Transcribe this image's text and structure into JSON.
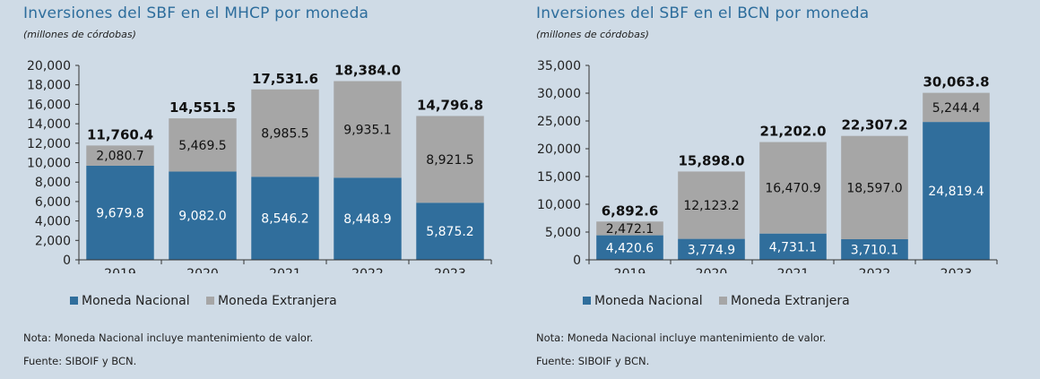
{
  "chart_data": [
    {
      "type": "bar",
      "stacked": true,
      "title": "Inversiones del SBF en el MHCP por moneda",
      "subtitle": "(millones de córdobas)",
      "categories": [
        "2019",
        "2020",
        "2021",
        "2022",
        "2023"
      ],
      "series": [
        {
          "name": "Moneda Nacional",
          "values": [
            9679.8,
            9082.0,
            8546.2,
            8448.9,
            5875.2
          ]
        },
        {
          "name": "Moneda Extranjera",
          "values": [
            2080.7,
            5469.5,
            8985.5,
            9935.1,
            8921.5
          ]
        }
      ],
      "totals": [
        11760.4,
        14551.5,
        17531.6,
        18384.0,
        14796.8
      ],
      "labels_nacional": [
        "9,679.8",
        "9,082.0",
        "8,546.2",
        "8,448.9",
        "5,875.2"
      ],
      "labels_extranjera": [
        "2,080.7",
        "5,469.5",
        "8,985.5",
        "9,935.1",
        "8,921.5"
      ],
      "labels_total": [
        "11,760.4",
        "14,551.5",
        "17,531.6",
        "18,384.0",
        "14,796.8"
      ],
      "yticks": [
        0,
        2000,
        4000,
        6000,
        8000,
        10000,
        12000,
        14000,
        16000,
        18000,
        20000
      ],
      "ytick_labels": [
        "0",
        "2,000",
        "4,000",
        "6,000",
        "8,000",
        "10,000",
        "12,000",
        "14,000",
        "16,000",
        "18,000",
        "20,000"
      ],
      "ylim": [
        0,
        20000
      ],
      "grid": false,
      "legend_position": "bottom",
      "notes": [
        "Nota: Moneda Nacional incluye mantenimiento de valor.",
        "Fuente: SIBOIF y BCN."
      ]
    },
    {
      "type": "bar",
      "stacked": true,
      "title": "Inversiones del SBF en el BCN por moneda",
      "subtitle": "(millones de córdobas)",
      "categories": [
        "2019",
        "2020",
        "2021",
        "2022",
        "2023"
      ],
      "series": [
        {
          "name": "Moneda Nacional",
          "values": [
            4420.6,
            3774.9,
            4731.1,
            3710.1,
            24819.4
          ]
        },
        {
          "name": "Moneda Extranjera",
          "values": [
            2472.1,
            12123.2,
            16470.9,
            18597.0,
            5244.4
          ]
        }
      ],
      "totals": [
        6892.6,
        15898.0,
        21202.0,
        22307.2,
        30063.8
      ],
      "labels_nacional": [
        "4,420.6",
        "3,774.9",
        "4,731.1",
        "3,710.1",
        "24,819.4"
      ],
      "labels_extranjera": [
        "2,472.1",
        "12,123.2",
        "16,470.9",
        "18,597.0",
        "5,244.4"
      ],
      "labels_total": [
        "6,892.6",
        "15,898.0",
        "21,202.0",
        "22,307.2",
        "30,063.8"
      ],
      "yticks": [
        0,
        5000,
        10000,
        15000,
        20000,
        25000,
        30000,
        35000
      ],
      "ytick_labels": [
        "0",
        "5,000",
        "10,000",
        "15,000",
        "20,000",
        "25,000",
        "30,000",
        "35,000"
      ],
      "ylim": [
        0,
        35000
      ],
      "grid": false,
      "legend_position": "bottom",
      "notes": [
        "Nota: Moneda Nacional incluye mantenimiento de valor.",
        "Fuente: SIBOIF y BCN."
      ]
    }
  ],
  "colors": {
    "nacional": "#306e9c",
    "extranjera": "#a6a6a6",
    "axis": "#333333",
    "title": "#2d6d9c"
  }
}
